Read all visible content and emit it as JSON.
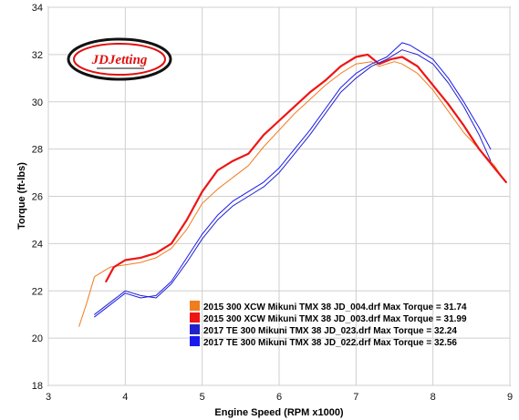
{
  "chart_data": {
    "type": "line",
    "xlabel": "Engine Speed (RPM x1000)",
    "ylabel": "Torque (ft-lbs)",
    "xlim": [
      3,
      9
    ],
    "ylim": [
      18,
      34
    ],
    "x_ticks": [
      3,
      4,
      5,
      6,
      7,
      8,
      9
    ],
    "y_ticks": [
      18,
      20,
      22,
      24,
      26,
      28,
      30,
      32,
      34
    ],
    "grid": true,
    "legend_position": "bottom-right",
    "logo": "JDJetting",
    "series": [
      {
        "name": "2015 300 XCW Mikuni TMX 38 JD_004.drf Max Torque = 31.74",
        "color": "#f07d1e",
        "width": 1,
        "points": [
          [
            3.4,
            20.5
          ],
          [
            3.5,
            21.5
          ],
          [
            3.6,
            22.6
          ],
          [
            3.8,
            23.0
          ],
          [
            4.0,
            23.1
          ],
          [
            4.2,
            23.2
          ],
          [
            4.4,
            23.4
          ],
          [
            4.6,
            23.8
          ],
          [
            4.8,
            24.6
          ],
          [
            5.0,
            25.7
          ],
          [
            5.2,
            26.3
          ],
          [
            5.4,
            26.8
          ],
          [
            5.6,
            27.3
          ],
          [
            5.8,
            28.1
          ],
          [
            6.0,
            28.8
          ],
          [
            6.2,
            29.5
          ],
          [
            6.4,
            30.1
          ],
          [
            6.6,
            30.7
          ],
          [
            6.8,
            31.2
          ],
          [
            7.0,
            31.6
          ],
          [
            7.2,
            31.7
          ],
          [
            7.3,
            31.5
          ],
          [
            7.4,
            31.6
          ],
          [
            7.5,
            31.7
          ],
          [
            7.6,
            31.6
          ],
          [
            7.8,
            31.2
          ],
          [
            8.0,
            30.5
          ],
          [
            8.2,
            29.6
          ],
          [
            8.4,
            28.7
          ],
          [
            8.6,
            28.0
          ],
          [
            8.8,
            27.3
          ],
          [
            8.9,
            26.8
          ]
        ]
      },
      {
        "name": "2015 300 XCW Mikuni TMX 38 JD_003.drf Max Torque = 31.99",
        "color": "#ee1515",
        "width": 2.2,
        "points": [
          [
            3.75,
            22.4
          ],
          [
            3.85,
            23.0
          ],
          [
            4.0,
            23.3
          ],
          [
            4.2,
            23.4
          ],
          [
            4.4,
            23.6
          ],
          [
            4.6,
            24.0
          ],
          [
            4.8,
            25.0
          ],
          [
            5.0,
            26.2
          ],
          [
            5.2,
            27.1
          ],
          [
            5.4,
            27.5
          ],
          [
            5.6,
            27.8
          ],
          [
            5.8,
            28.6
          ],
          [
            6.0,
            29.2
          ],
          [
            6.2,
            29.8
          ],
          [
            6.4,
            30.4
          ],
          [
            6.6,
            30.9
          ],
          [
            6.8,
            31.5
          ],
          [
            7.0,
            31.9
          ],
          [
            7.15,
            32.0
          ],
          [
            7.3,
            31.6
          ],
          [
            7.45,
            31.8
          ],
          [
            7.6,
            31.9
          ],
          [
            7.8,
            31.5
          ],
          [
            8.0,
            30.7
          ],
          [
            8.2,
            29.9
          ],
          [
            8.4,
            29.0
          ],
          [
            8.6,
            28.0
          ],
          [
            8.8,
            27.2
          ],
          [
            8.95,
            26.6
          ]
        ]
      },
      {
        "name": "2017 TE 300 Mikuni TMX 38 JD_023.drf Max Torque = 32.24",
        "color": "#2222cc",
        "width": 1,
        "points": [
          [
            3.6,
            21.0
          ],
          [
            3.8,
            21.5
          ],
          [
            4.0,
            22.0
          ],
          [
            4.2,
            21.8
          ],
          [
            4.4,
            21.7
          ],
          [
            4.6,
            22.3
          ],
          [
            4.8,
            23.2
          ],
          [
            5.0,
            24.2
          ],
          [
            5.2,
            25.0
          ],
          [
            5.4,
            25.6
          ],
          [
            5.6,
            26.0
          ],
          [
            5.8,
            26.4
          ],
          [
            6.0,
            27.0
          ],
          [
            6.2,
            27.8
          ],
          [
            6.4,
            28.6
          ],
          [
            6.6,
            29.5
          ],
          [
            6.8,
            30.4
          ],
          [
            7.0,
            31.0
          ],
          [
            7.2,
            31.5
          ],
          [
            7.4,
            31.8
          ],
          [
            7.6,
            32.2
          ],
          [
            7.7,
            32.1
          ],
          [
            7.8,
            32.0
          ],
          [
            8.0,
            31.6
          ],
          [
            8.2,
            30.8
          ],
          [
            8.4,
            29.8
          ],
          [
            8.6,
            28.6
          ],
          [
            8.75,
            27.5
          ]
        ]
      },
      {
        "name": "2017 TE 300 Mikuni TMX 38 JD_022.drf Max Torque = 32.56",
        "color": "#1a1aee",
        "width": 1,
        "points": [
          [
            3.6,
            20.9
          ],
          [
            3.8,
            21.4
          ],
          [
            4.0,
            21.9
          ],
          [
            4.2,
            21.7
          ],
          [
            4.4,
            21.8
          ],
          [
            4.6,
            22.4
          ],
          [
            4.8,
            23.4
          ],
          [
            5.0,
            24.4
          ],
          [
            5.2,
            25.2
          ],
          [
            5.4,
            25.8
          ],
          [
            5.6,
            26.2
          ],
          [
            5.8,
            26.6
          ],
          [
            6.0,
            27.2
          ],
          [
            6.2,
            28.0
          ],
          [
            6.4,
            28.8
          ],
          [
            6.6,
            29.7
          ],
          [
            6.8,
            30.6
          ],
          [
            7.0,
            31.2
          ],
          [
            7.2,
            31.6
          ],
          [
            7.4,
            31.9
          ],
          [
            7.6,
            32.5
          ],
          [
            7.7,
            32.4
          ],
          [
            7.8,
            32.2
          ],
          [
            8.0,
            31.8
          ],
          [
            8.2,
            31.0
          ],
          [
            8.4,
            30.0
          ],
          [
            8.6,
            28.9
          ],
          [
            8.75,
            28.0
          ]
        ]
      }
    ]
  }
}
